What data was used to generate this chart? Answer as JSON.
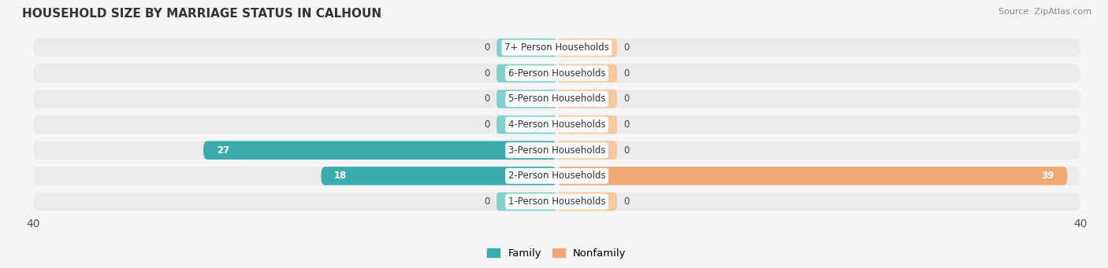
{
  "title": "HOUSEHOLD SIZE BY MARRIAGE STATUS IN CALHOUN",
  "source": "Source: ZipAtlas.com",
  "categories": [
    "7+ Person Households",
    "6-Person Households",
    "5-Person Households",
    "4-Person Households",
    "3-Person Households",
    "2-Person Households",
    "1-Person Households"
  ],
  "family_values": [
    0,
    0,
    0,
    0,
    27,
    18,
    0
  ],
  "nonfamily_values": [
    0,
    0,
    0,
    0,
    0,
    39,
    0
  ],
  "family_color": "#3aacad",
  "nonfamily_color": "#f0a875",
  "family_color_light": "#82cfd0",
  "nonfamily_color_light": "#f5c9a0",
  "axis_limit": 40,
  "background_color": "#f5f5f5",
  "bar_bg_color": "#e2e2e2",
  "row_bg_color": "#ebebeb"
}
